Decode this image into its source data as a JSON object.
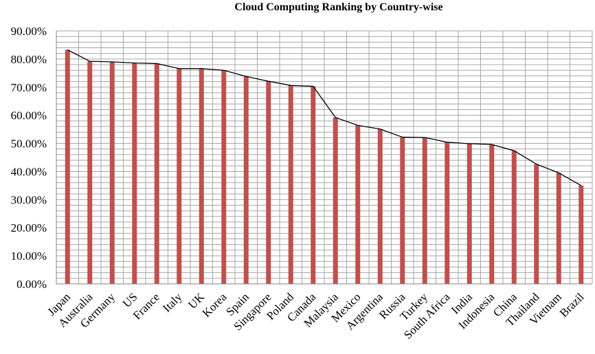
{
  "chart_data": {
    "type": "bar",
    "title": "Cloud Computing Ranking by Country-wise",
    "xlabel": "",
    "ylabel": "",
    "ylim": [
      0,
      90
    ],
    "y_tick_step": 10,
    "y_tick_labels": [
      "0.00%",
      "10.00%",
      "20.00%",
      "30.00%",
      "40.00%",
      "50.00%",
      "60.00%",
      "70.00%",
      "80.00%",
      "90.00%"
    ],
    "grid": true,
    "legend": "none",
    "categories": [
      "Japan",
      "Australia",
      "Germany",
      "US",
      "France",
      "Italy",
      "UK",
      "Korea",
      "Spain",
      "Singapore",
      "Poland",
      "Canada",
      "Malaysia",
      "Mexico",
      "Argentina",
      "Russia",
      "Turkey",
      "South Africa",
      "India",
      "Indonesia",
      "China",
      "Thailand",
      "Vietnam",
      "Brazil"
    ],
    "values": [
      83.3,
      79.2,
      79.0,
      78.6,
      78.4,
      76.6,
      76.6,
      76.0,
      73.8,
      72.1,
      70.6,
      70.3,
      59.2,
      56.4,
      55.1,
      52.2,
      52.1,
      50.4,
      49.9,
      49.6,
      47.4,
      42.6,
      39.5,
      35.0
    ],
    "bar_color": "#c0504d",
    "line_color": "#000000"
  }
}
